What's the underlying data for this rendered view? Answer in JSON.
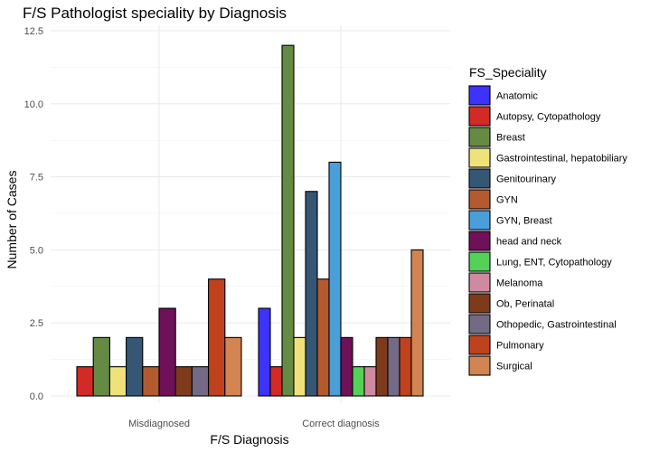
{
  "chart_data": {
    "type": "bar",
    "title": "F/S Pathologist speciality by Diagnosis",
    "xlabel": "F/S Diagnosis",
    "ylabel": "Number of Cases",
    "ylim": [
      0,
      12.5
    ],
    "yticks": [
      "0.0",
      "2.5",
      "5.0",
      "7.5",
      "10.0",
      "12.5"
    ],
    "grid": true,
    "legend_title": "FS_Speciality",
    "legend_position": "right",
    "categories": [
      "Misdiagnosed",
      "Correct diagnosis"
    ],
    "series": [
      {
        "name": "Anatomic",
        "color": "#3d33ff",
        "values": [
          0,
          3
        ]
      },
      {
        "name": "Autopsy, Cytopathology",
        "color": "#d22a26",
        "values": [
          1,
          1
        ]
      },
      {
        "name": "Breast",
        "color": "#648a44",
        "values": [
          2,
          12
        ]
      },
      {
        "name": "Gastrointestinal, hepatobiliary",
        "color": "#f0e27a",
        "values": [
          1,
          2
        ]
      },
      {
        "name": "Genitourinary",
        "color": "#355775",
        "values": [
          2,
          7
        ]
      },
      {
        "name": "GYN",
        "color": "#b35a30",
        "values": [
          1,
          4
        ]
      },
      {
        "name": "GYN, Breast",
        "color": "#4a9fdb",
        "values": [
          0,
          8
        ]
      },
      {
        "name": "head and neck",
        "color": "#6e1158",
        "values": [
          3,
          2
        ]
      },
      {
        "name": "Lung, ENT, Cytopathology",
        "color": "#55d15a",
        "values": [
          0,
          1
        ]
      },
      {
        "name": "Melanoma",
        "color": "#cf8aa0",
        "values": [
          0,
          1
        ]
      },
      {
        "name": "Ob, Perinatal",
        "color": "#7e3b1c",
        "values": [
          1,
          2
        ]
      },
      {
        "name": "Othopedic, Gastrointestinal",
        "color": "#746a85",
        "values": [
          1,
          2
        ]
      },
      {
        "name": "Pulmonary",
        "color": "#c0411e",
        "values": [
          4,
          2
        ]
      },
      {
        "name": "Surgical",
        "color": "#d28452",
        "values": [
          2,
          5
        ]
      }
    ]
  }
}
